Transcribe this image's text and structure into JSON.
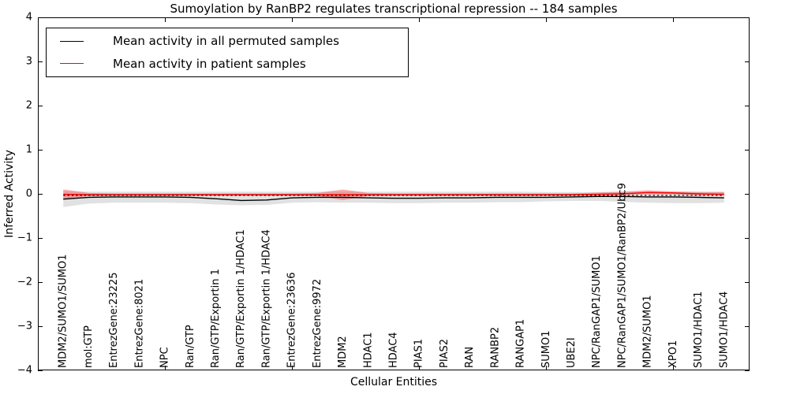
{
  "title": "Sumoylation by RanBP2 regulates transcriptional repression -- 184 samples",
  "legend": {
    "items": [
      {
        "label": "Mean activity in all permuted samples",
        "color": "#000000"
      },
      {
        "label": "Mean activity in patient samples",
        "color": "#ff0000"
      }
    ]
  },
  "chart_data": {
    "type": "line",
    "title": "Sumoylation by RanBP2 regulates transcriptional repression -- 184 samples",
    "xlabel": "Cellular Entities",
    "ylabel": "Inferred Activity",
    "xlim": [
      0,
      28
    ],
    "ylim": [
      -4,
      4
    ],
    "yticks": [
      -4,
      -3,
      -2,
      -1,
      0,
      1,
      2,
      3,
      4
    ],
    "xtick_positions": [
      5,
      10,
      15,
      20,
      25
    ],
    "grid": false,
    "legend_position": "upper left",
    "categories": [
      "MDM2/SUMO1/SUMO1",
      "mol:GTP",
      "EntrezGene:23225",
      "EntrezGene:8021",
      "NPC",
      "Ran/GTP",
      "Ran/GTP/Exportin 1",
      "Ran/GTP/Exportin 1/HDAC1",
      "Ran/GTP/Exportin 1/HDAC4",
      "EntrezGene:23636",
      "EntrezGene:9972",
      "MDM2",
      "HDAC1",
      "HDAC4",
      "PIAS1",
      "PIAS2",
      "RAN",
      "RANBP2",
      "RANGAP1",
      "SUMO1",
      "UBE2I",
      "NPC/RanGAP1/SUMO1",
      "NPC/RanGAP1/SUMO1/RanBP2/Ubc9",
      "MDM2/SUMO1",
      "XPO1",
      "SUMO1/HDAC1",
      "SUMO1/HDAC4"
    ],
    "x": [
      1,
      2,
      3,
      4,
      5,
      6,
      7,
      8,
      9,
      10,
      11,
      12,
      13,
      14,
      15,
      16,
      17,
      18,
      19,
      20,
      21,
      22,
      23,
      24,
      25,
      26,
      27
    ],
    "series": [
      {
        "name": "Mean activity in all permuted samples",
        "color": "#000000",
        "style": "solid",
        "values": [
          -0.12,
          -0.08,
          -0.07,
          -0.07,
          -0.07,
          -0.08,
          -0.11,
          -0.15,
          -0.14,
          -0.09,
          -0.08,
          -0.08,
          -0.09,
          -0.1,
          -0.1,
          -0.09,
          -0.09,
          -0.08,
          -0.08,
          -0.08,
          -0.07,
          -0.06,
          -0.06,
          -0.07,
          -0.07,
          -0.08,
          -0.09
        ],
        "band_upper": [
          0.07,
          0.05,
          0.05,
          0.05,
          0.05,
          0.05,
          0.05,
          0.05,
          0.05,
          0.05,
          0.05,
          0.06,
          0.05,
          0.05,
          0.05,
          0.05,
          0.05,
          0.05,
          0.05,
          0.04,
          0.04,
          0.04,
          0.05,
          0.06,
          0.06,
          0.05,
          0.05
        ],
        "band_lower": [
          -0.3,
          -0.22,
          -0.2,
          -0.2,
          -0.2,
          -0.21,
          -0.24,
          -0.26,
          -0.25,
          -0.2,
          -0.19,
          -0.2,
          -0.2,
          -0.21,
          -0.21,
          -0.2,
          -0.2,
          -0.19,
          -0.19,
          -0.17,
          -0.16,
          -0.16,
          -0.18,
          -0.2,
          -0.21,
          -0.21,
          -0.2
        ],
        "band_color": "rgba(120,120,120,0.22)"
      },
      {
        "name": "Mean activity in patient samples",
        "color": "#ff0000",
        "style": "solid",
        "values": [
          -0.01,
          -0.02,
          -0.02,
          -0.02,
          -0.02,
          -0.02,
          -0.02,
          -0.02,
          -0.02,
          -0.02,
          -0.02,
          -0.02,
          -0.02,
          -0.02,
          -0.02,
          -0.02,
          -0.02,
          -0.02,
          -0.02,
          -0.02,
          -0.02,
          -0.01,
          0.0,
          0.03,
          0.02,
          0.0,
          -0.01
        ],
        "band_upper": [
          0.1,
          0.02,
          0.01,
          0.01,
          0.01,
          0.01,
          0.01,
          0.01,
          0.01,
          0.01,
          0.02,
          0.1,
          0.02,
          0.01,
          0.01,
          0.01,
          0.01,
          0.01,
          0.01,
          0.01,
          0.01,
          0.03,
          0.05,
          0.08,
          0.05,
          0.04,
          0.04
        ],
        "band_lower": [
          -0.13,
          -0.05,
          -0.04,
          -0.04,
          -0.04,
          -0.04,
          -0.04,
          -0.04,
          -0.04,
          -0.04,
          -0.05,
          -0.14,
          -0.05,
          -0.04,
          -0.04,
          -0.04,
          -0.04,
          -0.04,
          -0.04,
          -0.04,
          -0.04,
          -0.03,
          -0.02,
          -0.01,
          -0.01,
          -0.03,
          -0.04
        ],
        "band_color": "rgba(255,0,0,0.30)"
      }
    ],
    "baseline_dashed": {
      "value": -0.035,
      "color": "#000000",
      "style": "dotted"
    }
  }
}
